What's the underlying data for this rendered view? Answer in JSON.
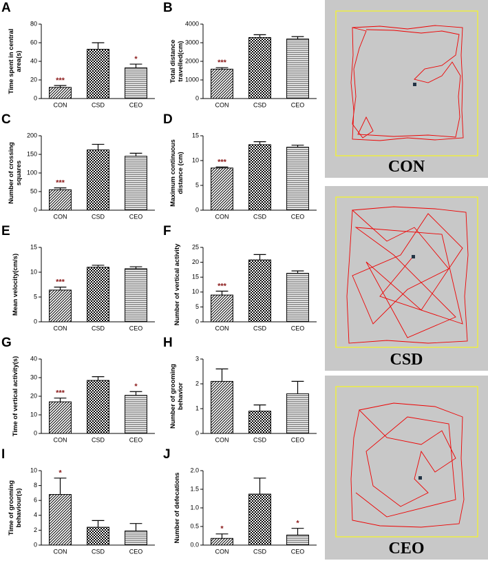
{
  "chart_data": [
    {
      "type": "bar",
      "panel": "A",
      "ylabel": "Time spent in central area(s)",
      "categories": [
        "CON",
        "CSD",
        "CEO"
      ],
      "values": [
        12,
        53,
        33
      ],
      "errors": [
        2,
        7,
        4
      ],
      "annotations": [
        "***",
        null,
        "*"
      ],
      "ylim": [
        0,
        80
      ],
      "yticks": [
        0,
        20,
        40,
        60,
        80
      ],
      "patterns": [
        "diagonal",
        "checker",
        "horizontal"
      ],
      "annotation_color": "#8b1a1a"
    },
    {
      "type": "bar",
      "panel": "B",
      "ylabel": "Total distance travelled(cm)",
      "categories": [
        "CON",
        "CSD",
        "CEO"
      ],
      "values": [
        1580,
        3280,
        3200
      ],
      "errors": [
        80,
        150,
        130
      ],
      "annotations": [
        "***",
        null,
        null
      ],
      "ylim": [
        0,
        4000
      ],
      "yticks": [
        0,
        1000,
        2000,
        3000,
        4000
      ],
      "patterns": [
        "diagonal",
        "checker",
        "horizontal"
      ],
      "annotation_color": "#8b1a1a"
    },
    {
      "type": "bar",
      "panel": "C",
      "ylabel": "Number of crossing squares",
      "categories": [
        "CON",
        "CSD",
        "CEO"
      ],
      "values": [
        55,
        162,
        145
      ],
      "errors": [
        5,
        15,
        8
      ],
      "annotations": [
        "***",
        null,
        null
      ],
      "ylim": [
        0,
        200
      ],
      "yticks": [
        0,
        50,
        100,
        150,
        200
      ],
      "patterns": [
        "diagonal",
        "checker",
        "horizontal"
      ],
      "annotation_color": "#8b1a1a"
    },
    {
      "type": "bar",
      "panel": "D",
      "ylabel": "Maximum continuous distance (cm)",
      "categories": [
        "CON",
        "CSD",
        "CEO"
      ],
      "values": [
        8.5,
        13.2,
        12.7
      ],
      "errors": [
        0.2,
        0.6,
        0.4
      ],
      "annotations": [
        "***",
        null,
        null
      ],
      "ylim": [
        0,
        15
      ],
      "yticks": [
        0,
        5,
        10,
        15
      ],
      "patterns": [
        "diagonal",
        "checker",
        "horizontal"
      ],
      "annotation_color": "#8b1a1a"
    },
    {
      "type": "bar",
      "panel": "E",
      "ylabel": "Mean velocity(cm/s)",
      "categories": [
        "CON",
        "CSD",
        "CEO"
      ],
      "values": [
        6.4,
        11,
        10.7
      ],
      "errors": [
        0.6,
        0.4,
        0.4
      ],
      "annotations": [
        "***",
        null,
        null
      ],
      "ylim": [
        0,
        15
      ],
      "yticks": [
        0,
        5,
        10,
        15
      ],
      "patterns": [
        "diagonal",
        "checker",
        "horizontal"
      ],
      "annotation_color": "#8b1a1a"
    },
    {
      "type": "bar",
      "panel": "F",
      "ylabel": "Number of vertical activity",
      "categories": [
        "CON",
        "CSD",
        "CEO"
      ],
      "values": [
        9,
        20.8,
        16.3
      ],
      "errors": [
        1.3,
        1.8,
        0.8
      ],
      "annotations": [
        "***",
        null,
        null
      ],
      "ylim": [
        0,
        25
      ],
      "yticks": [
        0,
        5,
        10,
        15,
        20,
        25
      ],
      "patterns": [
        "diagonal",
        "checker",
        "horizontal"
      ],
      "annotation_color": "#8b1a1a"
    },
    {
      "type": "bar",
      "panel": "G",
      "ylabel": "Time of vertical activity(s)",
      "categories": [
        "CON",
        "CSD",
        "CEO"
      ],
      "values": [
        17,
        28.5,
        20.5
      ],
      "errors": [
        2,
        2,
        2
      ],
      "annotations": [
        "***",
        null,
        "*"
      ],
      "ylim": [
        0,
        40
      ],
      "yticks": [
        0,
        10,
        20,
        30,
        40
      ],
      "patterns": [
        "diagonal",
        "checker",
        "horizontal"
      ],
      "annotation_color": "#8b1a1a"
    },
    {
      "type": "bar",
      "panel": "H",
      "ylabel": "Number of grooming behavior",
      "categories": [
        "CON",
        "CSD",
        "CEO"
      ],
      "values": [
        2.1,
        0.9,
        1.6
      ],
      "errors": [
        0.5,
        0.25,
        0.5
      ],
      "annotations": [
        null,
        null,
        null
      ],
      "ylim": [
        0,
        3
      ],
      "yticks": [
        0,
        1,
        2,
        3
      ],
      "patterns": [
        "diagonal",
        "checker",
        "horizontal"
      ],
      "annotation_color": "#8b1a1a"
    },
    {
      "type": "bar",
      "panel": "I",
      "ylabel": "Time of grooming behaviour(s)",
      "categories": [
        "CON",
        "CSD",
        "CEO"
      ],
      "values": [
        6.8,
        2.4,
        1.9
      ],
      "errors": [
        2.2,
        0.9,
        1
      ],
      "annotations": [
        "*",
        null,
        null
      ],
      "ylim": [
        0,
        10
      ],
      "yticks": [
        0,
        2,
        4,
        6,
        8,
        10
      ],
      "patterns": [
        "diagonal",
        "checker",
        "horizontal"
      ],
      "annotation_color": "#8b1a1a"
    },
    {
      "type": "bar",
      "panel": "J",
      "ylabel": "Number of defecations",
      "categories": [
        "CON",
        "CSD",
        "CEO"
      ],
      "values": [
        0.18,
        1.37,
        0.27
      ],
      "errors": [
        0.12,
        0.43,
        0.18
      ],
      "annotations": [
        "*",
        null,
        "*"
      ],
      "ylim": [
        0,
        2
      ],
      "yticks": [
        {
          "value": 0,
          "label": "0.0"
        },
        0.5,
        {
          "value": 1,
          "label": "1.0"
        },
        1.5,
        {
          "value": 2,
          "label": "2.0"
        }
      ],
      "patterns": [
        "diagonal",
        "checker",
        "horizontal"
      ],
      "annotation_color": "#8b1a1a"
    }
  ],
  "tracks": [
    {
      "label": "CON"
    },
    {
      "label": "CSD"
    },
    {
      "label": "CEO"
    }
  ]
}
